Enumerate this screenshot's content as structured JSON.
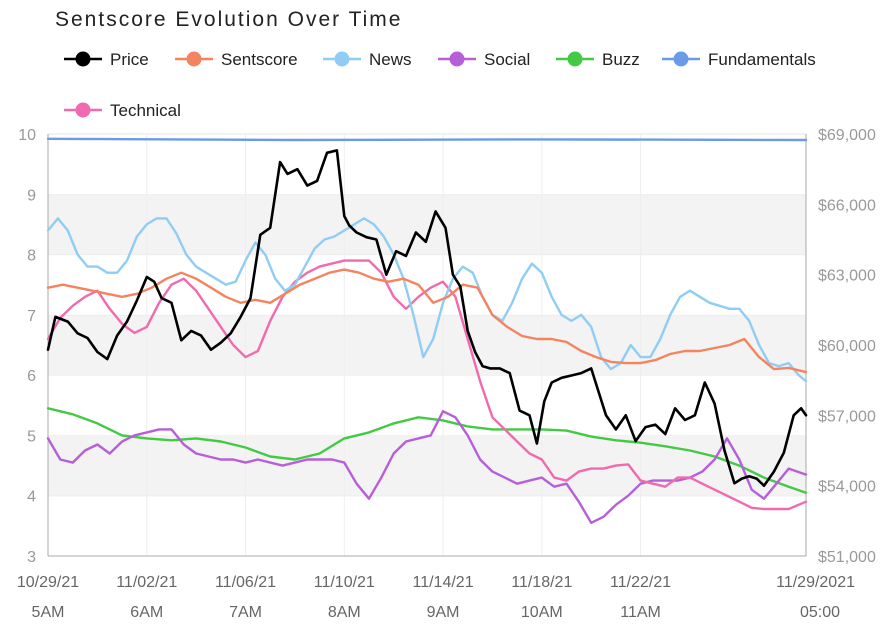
{
  "chart_data": {
    "type": "line",
    "title": "Sentscore Evolution Over Time",
    "legend_position": "top-left",
    "colors": {
      "Price": "#000000",
      "Sentscore": "#f4845f",
      "News": "#90cdf4",
      "Social": "#b65fd8",
      "Buzz": "#44c944",
      "Fundamentals": "#6b9be8",
      "Technical": "#f06aae"
    },
    "y_left": {
      "min": 3,
      "max": 10,
      "ticks": [
        "3",
        "4",
        "5",
        "6",
        "7",
        "8",
        "9",
        "10"
      ]
    },
    "y_right": {
      "min": 51000,
      "max": 69000,
      "ticks": [
        "$51,000",
        "$54,000",
        "$57,000",
        "$60,000",
        "$63,000",
        "$66,000",
        "$69,000"
      ]
    },
    "x_range": {
      "min": 0,
      "max": 30.7
    },
    "x_ticks": [
      {
        "x": 0,
        "date": "10/29/21",
        "time": "5AM"
      },
      {
        "x": 4,
        "date": "11/02/21",
        "time": "6AM"
      },
      {
        "x": 8,
        "date": "11/06/21",
        "time": "7AM"
      },
      {
        "x": 12,
        "date": "11/10/21",
        "time": "8AM"
      },
      {
        "x": 16,
        "date": "11/14/21",
        "time": "9AM"
      },
      {
        "x": 20,
        "date": "11/18/21",
        "time": "10AM"
      },
      {
        "x": 24,
        "date": "11/22/21",
        "time": "11AM"
      },
      {
        "x": 30.7,
        "date": "11/29/2021",
        "time": "05:00"
      }
    ],
    "grid_bands": true,
    "series": [
      {
        "name": "Price",
        "axis": "right",
        "x": [
          0,
          0.3,
          0.8,
          1.2,
          1.6,
          2.0,
          2.4,
          2.8,
          3.2,
          3.6,
          4.0,
          4.3,
          4.6,
          5.0,
          5.4,
          5.8,
          6.2,
          6.6,
          7.0,
          7.4,
          7.8,
          8.2,
          8.6,
          9.0,
          9.4,
          9.7,
          10.1,
          10.5,
          10.9,
          11.3,
          11.7,
          12.0,
          12.2,
          12.5,
          12.9,
          13.3,
          13.7,
          14.1,
          14.5,
          14.9,
          15.3,
          15.7,
          16.1,
          16.4,
          16.7,
          17.0,
          17.3,
          17.6,
          17.9,
          18.3,
          18.7,
          19.1,
          19.5,
          19.8,
          20.1,
          20.4,
          20.8,
          21.2,
          21.6,
          22.0,
          22.3,
          22.6,
          23.0,
          23.4,
          23.8,
          24.2,
          24.6,
          25.0,
          25.4,
          25.8,
          26.2,
          26.6,
          27.0,
          27.4,
          27.8,
          28.1,
          28.4,
          28.7,
          29.0,
          29.4,
          29.8,
          30.2,
          30.5,
          30.7
        ],
        "values": [
          59800,
          61200,
          61000,
          60500,
          60300,
          59700,
          59400,
          60400,
          61000,
          61900,
          62900,
          62700,
          62000,
          61800,
          60200,
          60600,
          60400,
          59800,
          60100,
          60500,
          61200,
          62000,
          64700,
          65000,
          67800,
          67300,
          67500,
          66800,
          67000,
          68200,
          68300,
          65500,
          65100,
          64800,
          64600,
          64500,
          63000,
          64000,
          63800,
          64800,
          64400,
          65700,
          65000,
          63000,
          62500,
          60600,
          59700,
          59100,
          59000,
          59000,
          58800,
          57200,
          57000,
          55800,
          57600,
          58400,
          58600,
          58700,
          58800,
          59000,
          58000,
          57000,
          56400,
          57000,
          55900,
          56500,
          56600,
          56200,
          57300,
          56800,
          57000,
          58400,
          57500,
          55500,
          54100,
          54300,
          54400,
          54300,
          54000,
          54600,
          55400,
          57000,
          57300,
          57000
        ]
      },
      {
        "name": "Sentscore",
        "axis": "left",
        "x": [
          0,
          0.6,
          1.2,
          1.8,
          2.4,
          3.0,
          3.6,
          4.2,
          4.8,
          5.4,
          6.0,
          6.6,
          7.2,
          7.8,
          8.4,
          9.0,
          9.6,
          10.2,
          10.8,
          11.4,
          12.0,
          12.6,
          13.2,
          13.8,
          14.4,
          15.0,
          15.6,
          16.2,
          16.8,
          17.4,
          18.0,
          18.6,
          19.2,
          19.8,
          20.4,
          21.0,
          21.6,
          22.2,
          22.8,
          23.4,
          24.0,
          24.6,
          25.2,
          25.8,
          26.4,
          27.0,
          27.6,
          28.2,
          28.8,
          29.4,
          30.0,
          30.7
        ],
        "values": [
          7.45,
          7.5,
          7.45,
          7.4,
          7.35,
          7.3,
          7.35,
          7.45,
          7.6,
          7.7,
          7.6,
          7.45,
          7.3,
          7.2,
          7.25,
          7.2,
          7.35,
          7.5,
          7.6,
          7.7,
          7.75,
          7.7,
          7.6,
          7.55,
          7.6,
          7.5,
          7.2,
          7.3,
          7.5,
          7.45,
          7.0,
          6.8,
          6.65,
          6.6,
          6.6,
          6.55,
          6.4,
          6.3,
          6.22,
          6.2,
          6.2,
          6.25,
          6.35,
          6.4,
          6.4,
          6.45,
          6.5,
          6.6,
          6.3,
          6.1,
          6.12,
          6.05
        ]
      },
      {
        "name": "News",
        "axis": "left",
        "x": [
          0,
          0.4,
          0.8,
          1.2,
          1.6,
          2.0,
          2.4,
          2.8,
          3.2,
          3.6,
          4.0,
          4.4,
          4.8,
          5.2,
          5.6,
          6.0,
          6.4,
          6.8,
          7.2,
          7.6,
          8.0,
          8.4,
          8.8,
          9.2,
          9.6,
          10.0,
          10.4,
          10.8,
          11.2,
          11.6,
          12.0,
          12.4,
          12.8,
          13.2,
          13.6,
          14.0,
          14.4,
          14.8,
          15.2,
          15.6,
          16.0,
          16.4,
          16.8,
          17.2,
          17.6,
          18.0,
          18.4,
          18.8,
          19.2,
          19.6,
          20.0,
          20.4,
          20.8,
          21.2,
          21.6,
          22.0,
          22.4,
          22.8,
          23.2,
          23.6,
          24.0,
          24.4,
          24.8,
          25.2,
          25.6,
          26.0,
          26.4,
          26.8,
          27.2,
          27.6,
          28.0,
          28.4,
          28.8,
          29.2,
          29.6,
          30.0,
          30.4,
          30.7
        ],
        "values": [
          8.4,
          8.6,
          8.4,
          8.0,
          7.8,
          7.8,
          7.7,
          7.7,
          7.9,
          8.3,
          8.5,
          8.6,
          8.6,
          8.35,
          8.0,
          7.8,
          7.7,
          7.6,
          7.5,
          7.55,
          7.9,
          8.2,
          8.0,
          7.6,
          7.4,
          7.5,
          7.8,
          8.1,
          8.25,
          8.3,
          8.4,
          8.5,
          8.6,
          8.5,
          8.3,
          8.0,
          7.6,
          7.0,
          6.3,
          6.6,
          7.2,
          7.6,
          7.8,
          7.7,
          7.3,
          7.0,
          6.9,
          7.2,
          7.6,
          7.85,
          7.7,
          7.3,
          7.0,
          6.9,
          7.0,
          6.8,
          6.3,
          6.1,
          6.2,
          6.5,
          6.3,
          6.3,
          6.6,
          7.0,
          7.3,
          7.4,
          7.3,
          7.2,
          7.15,
          7.1,
          7.1,
          6.9,
          6.5,
          6.2,
          6.15,
          6.2,
          6.0,
          5.9
        ]
      },
      {
        "name": "Social",
        "axis": "left",
        "x": [
          0,
          0.5,
          1.0,
          1.5,
          2.0,
          2.5,
          3.0,
          3.5,
          4.0,
          4.5,
          5.0,
          5.5,
          6.0,
          6.5,
          7.0,
          7.5,
          8.0,
          8.5,
          9.0,
          9.5,
          10.0,
          10.5,
          11.0,
          11.5,
          12.0,
          12.5,
          13.0,
          13.5,
          14.0,
          14.5,
          15.0,
          15.5,
          16.0,
          16.5,
          17.0,
          17.5,
          18.0,
          18.5,
          19.0,
          19.5,
          20.0,
          20.5,
          21.0,
          21.5,
          22.0,
          22.5,
          23.0,
          23.5,
          24.0,
          24.5,
          25.0,
          25.5,
          26.0,
          26.5,
          27.0,
          27.5,
          28.0,
          28.5,
          29.0,
          29.5,
          30.0,
          30.7
        ],
        "values": [
          4.95,
          4.6,
          4.55,
          4.75,
          4.85,
          4.7,
          4.9,
          5.0,
          5.05,
          5.1,
          5.1,
          4.85,
          4.7,
          4.65,
          4.6,
          4.6,
          4.55,
          4.6,
          4.55,
          4.5,
          4.55,
          4.6,
          4.6,
          4.6,
          4.55,
          4.2,
          3.95,
          4.3,
          4.7,
          4.9,
          4.95,
          5.0,
          5.4,
          5.3,
          5.0,
          4.6,
          4.4,
          4.3,
          4.2,
          4.25,
          4.3,
          4.15,
          4.2,
          3.9,
          3.55,
          3.65,
          3.85,
          4.0,
          4.2,
          4.25,
          4.25,
          4.25,
          4.3,
          4.4,
          4.6,
          4.95,
          4.6,
          4.1,
          3.95,
          4.2,
          4.45,
          4.35
        ]
      },
      {
        "name": "Buzz",
        "axis": "left",
        "x": [
          0,
          1,
          2,
          3,
          4,
          5,
          6,
          7,
          8,
          9,
          10,
          11,
          12,
          13,
          14,
          15,
          16,
          17,
          18,
          19,
          20,
          21,
          22,
          23,
          24,
          25,
          26,
          27,
          28,
          29,
          30,
          30.7
        ],
        "values": [
          5.45,
          5.35,
          5.2,
          5.0,
          4.95,
          4.92,
          4.95,
          4.9,
          4.8,
          4.65,
          4.6,
          4.7,
          4.95,
          5.05,
          5.2,
          5.3,
          5.25,
          5.15,
          5.1,
          5.1,
          5.1,
          5.08,
          4.98,
          4.92,
          4.88,
          4.82,
          4.75,
          4.65,
          4.5,
          4.3,
          4.15,
          4.05
        ]
      },
      {
        "name": "Fundamentals",
        "axis": "left",
        "x": [
          0,
          10,
          20,
          30.7
        ],
        "values": [
          9.92,
          9.9,
          9.91,
          9.9
        ]
      },
      {
        "name": "Technical",
        "axis": "left",
        "x": [
          0,
          0.5,
          1.0,
          1.5,
          2.0,
          2.5,
          3.0,
          3.5,
          4.0,
          4.5,
          5.0,
          5.5,
          6.0,
          6.5,
          7.0,
          7.5,
          8.0,
          8.5,
          9.0,
          9.5,
          10.0,
          10.5,
          11.0,
          11.5,
          12.0,
          12.5,
          13.0,
          13.5,
          14.0,
          14.5,
          15.0,
          15.5,
          16.0,
          16.5,
          17.0,
          17.5,
          18.0,
          18.5,
          19.0,
          19.5,
          20.0,
          20.5,
          21.0,
          21.5,
          22.0,
          22.5,
          23.0,
          23.5,
          24.0,
          24.5,
          25.0,
          25.5,
          26.0,
          26.5,
          27.0,
          27.5,
          28.0,
          28.5,
          29.0,
          29.5,
          30.0,
          30.7
        ],
        "values": [
          6.6,
          6.95,
          7.15,
          7.3,
          7.4,
          7.1,
          6.85,
          6.7,
          6.8,
          7.2,
          7.5,
          7.6,
          7.4,
          7.1,
          6.8,
          6.5,
          6.3,
          6.4,
          6.9,
          7.3,
          7.55,
          7.7,
          7.8,
          7.85,
          7.9,
          7.9,
          7.9,
          7.7,
          7.3,
          7.1,
          7.3,
          7.45,
          7.55,
          7.3,
          6.6,
          5.9,
          5.3,
          5.1,
          4.9,
          4.7,
          4.6,
          4.3,
          4.25,
          4.4,
          4.45,
          4.45,
          4.5,
          4.52,
          4.25,
          4.2,
          4.15,
          4.3,
          4.3,
          4.2,
          4.1,
          4.0,
          3.9,
          3.8,
          3.78,
          3.78,
          3.78,
          3.9
        ]
      }
    ]
  }
}
